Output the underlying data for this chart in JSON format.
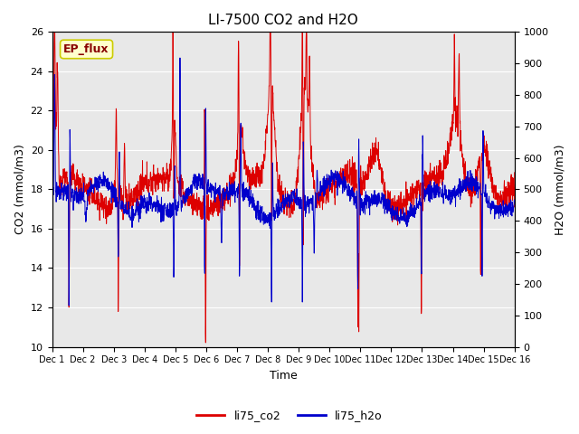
{
  "title": "LI-7500 CO2 and H2O",
  "xlabel": "Time",
  "ylabel_left": "CO2 (mmol/m3)",
  "ylabel_right": "H2O (mmol/m3)",
  "ylim_left": [
    10,
    26
  ],
  "ylim_right": [
    0,
    1000
  ],
  "yticks_left": [
    10,
    12,
    14,
    16,
    18,
    20,
    22,
    24,
    26
  ],
  "yticks_right": [
    0,
    100,
    200,
    300,
    400,
    500,
    600,
    700,
    800,
    900,
    1000
  ],
  "xtick_labels": [
    "Dec 1",
    "Dec 2",
    "Dec 3",
    "Dec 4",
    "Dec 5",
    "Dec 6",
    "Dec 7",
    "Dec 8",
    "Dec 9",
    "Dec 10",
    "Dec 11",
    "Dec 12",
    "Dec 13",
    "Dec 14",
    "Dec 15",
    "Dec 16"
  ],
  "color_co2": "#dd0000",
  "color_h2o": "#0000cc",
  "legend_label_co2": "li75_co2",
  "legend_label_h2o": "li75_h2o",
  "annotation_text": "EP_flux",
  "annotation_facecolor": "#ffffcc",
  "annotation_edgecolor": "#cccc00",
  "annotation_textcolor": "#880000",
  "background_color": "#e8e8e8",
  "grid_color": "#ffffff",
  "fig_facecolor": "#ffffff",
  "n_points": 2000
}
